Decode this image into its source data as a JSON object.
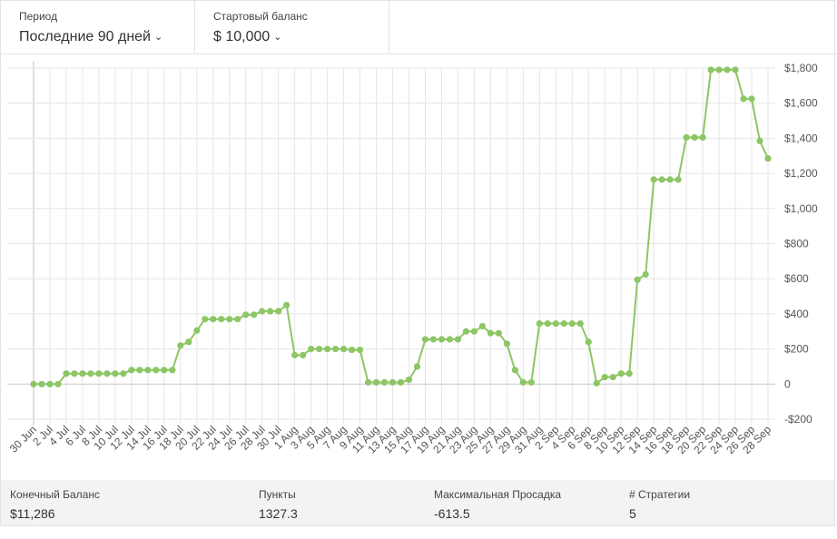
{
  "filters": {
    "period": {
      "label": "Период",
      "value": "Последние 90 дней"
    },
    "balance": {
      "label": "Стартовый баланс",
      "value": "$ 10,000"
    }
  },
  "colors": {
    "line": "#8cc665",
    "grid": "#e6e6e6",
    "zero_line": "#c8c8c8"
  },
  "chart_data": {
    "type": "line",
    "title": "",
    "xlabel": "",
    "ylabel": "",
    "ylim": [
      -200,
      1800
    ],
    "y_ticks": [
      -200,
      0,
      200,
      400,
      600,
      800,
      1000,
      1200,
      1400,
      1600,
      1800
    ],
    "y_tick_labels": [
      "-$200",
      "0",
      "$200",
      "$400",
      "$600",
      "$800",
      "$1,000",
      "$1,200",
      "$1,400",
      "$1,600",
      "$1,800"
    ],
    "y_axis_position": "right",
    "grid": true,
    "x_tick_labels": [
      "30 Jun",
      "2 Jul",
      "4 Jul",
      "6 Jul",
      "8 Jul",
      "10 Jul",
      "12 Jul",
      "14 Jul",
      "16 Jul",
      "18 Jul",
      "20 Jul",
      "22 Jul",
      "24 Jul",
      "26 Jul",
      "28 Jul",
      "30 Jul",
      "1 Aug",
      "3 Aug",
      "5 Aug",
      "7 Aug",
      "9 Aug",
      "11 Aug",
      "13 Aug",
      "15 Aug",
      "17 Aug",
      "19 Aug",
      "21 Aug",
      "23 Aug",
      "25 Aug",
      "27 Aug",
      "29 Aug",
      "31 Aug",
      "2 Sep",
      "4 Sep",
      "6 Sep",
      "8 Sep",
      "10 Sep",
      "12 Sep",
      "14 Sep",
      "16 Sep",
      "18 Sep",
      "20 Sep",
      "22 Sep",
      "24 Sep",
      "26 Sep",
      "28 Sep"
    ],
    "series": [
      {
        "values": [
          0,
          0,
          0,
          0,
          60,
          60,
          60,
          60,
          60,
          60,
          60,
          60,
          80,
          80,
          80,
          80,
          80,
          80,
          220,
          240,
          305,
          370,
          370,
          370,
          370,
          370,
          395,
          395,
          415,
          415,
          415,
          450,
          165,
          165,
          200,
          200,
          200,
          200,
          200,
          195,
          195,
          10,
          10,
          10,
          10,
          10,
          25,
          100,
          255,
          255,
          255,
          255,
          255,
          300,
          300,
          330,
          290,
          290,
          230,
          80,
          10,
          10,
          345,
          345,
          345,
          345,
          345,
          345,
          240,
          5,
          40,
          40,
          60,
          60,
          595,
          625,
          1165,
          1165,
          1165,
          1165,
          1405,
          1405,
          1405,
          1790,
          1790,
          1790,
          1790,
          1625,
          1625,
          1385,
          1285
        ]
      }
    ]
  },
  "stats": [
    {
      "label": "Конечный Баланс",
      "value": "$11,286"
    },
    {
      "label": "Пункты",
      "value": "1327.3"
    },
    {
      "label": "Максимальная Просадка",
      "value": "-613.5"
    },
    {
      "label": "# Стратегии",
      "value": "5"
    }
  ]
}
